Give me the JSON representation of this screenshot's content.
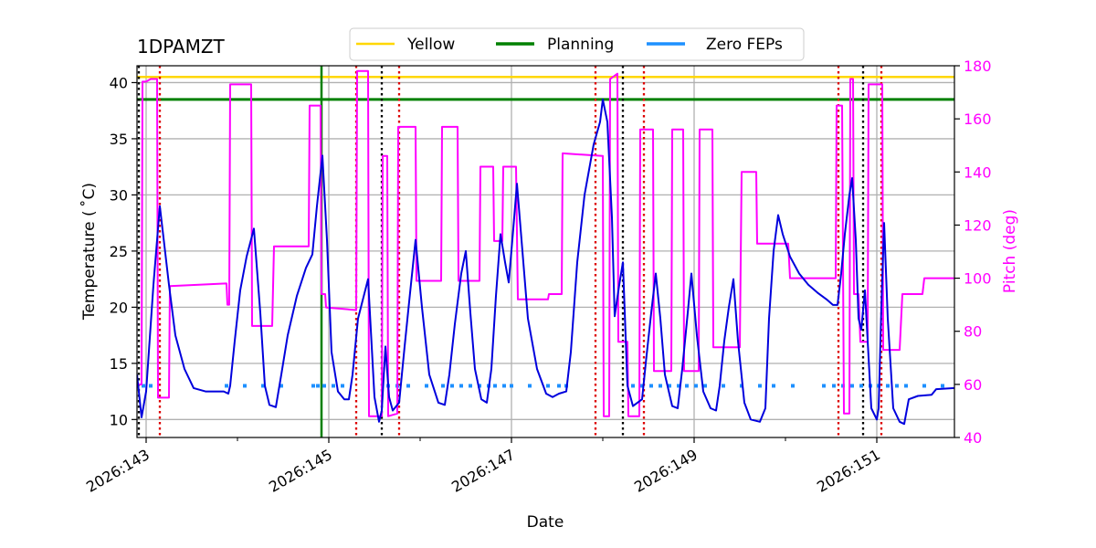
{
  "chart_data": {
    "type": "line",
    "title": "1DPAMZT",
    "xlabel": "Date",
    "ylabel": "Temperature ($^\\circ$C)",
    "ylabel_display": "Temperature ( ˚C)",
    "y2label": "Pitch (deg)",
    "xlim": [
      142.9,
      151.85
    ],
    "ylim": [
      8.4,
      41.5
    ],
    "y2lim": [
      40,
      180
    ],
    "grid": true,
    "legend_placement": "top-center",
    "x_ticks": [
      {
        "value": 143,
        "label": "2026:143"
      },
      {
        "value": 145,
        "label": "2026:145"
      },
      {
        "value": 147,
        "label": "2026:147"
      },
      {
        "value": 149,
        "label": "2026:149"
      },
      {
        "value": 151,
        "label": "2026:151"
      }
    ],
    "x_minor_ticks": [
      144,
      146,
      148,
      150
    ],
    "y_ticks": [
      {
        "value": 10,
        "label": "10"
      },
      {
        "value": 15,
        "label": "15"
      },
      {
        "value": 20,
        "label": "20"
      },
      {
        "value": 25,
        "label": "25"
      },
      {
        "value": 30,
        "label": "30"
      },
      {
        "value": 35,
        "label": "35"
      },
      {
        "value": 40,
        "label": "40"
      }
    ],
    "y2_ticks": [
      {
        "value": 40,
        "label": "40"
      },
      {
        "value": 60,
        "label": "60"
      },
      {
        "value": 80,
        "label": "80"
      },
      {
        "value": 100,
        "label": "100"
      },
      {
        "value": 120,
        "label": "120"
      },
      {
        "value": 140,
        "label": "140"
      },
      {
        "value": 160,
        "label": "160"
      },
      {
        "value": 180,
        "label": "180"
      }
    ],
    "legend": [
      {
        "name": "Yellow",
        "color": "#ffd700"
      },
      {
        "name": "Planning",
        "color": "#008000"
      },
      {
        "name": "Zero FEPs",
        "color": "#1e90ff"
      }
    ],
    "hlines": [
      {
        "name": "Yellow",
        "y": 40.5,
        "color": "#ffd700"
      },
      {
        "name": "Planning",
        "y": 38.5,
        "color": "#008000"
      }
    ],
    "vline_green": {
      "x": 144.92,
      "color": "#008000"
    },
    "vlines_black": [
      142.92,
      145.58,
      148.22,
      150.85
    ],
    "vlines_red": [
      143.15,
      145.3,
      145.77,
      147.92,
      148.45,
      150.58,
      151.05
    ],
    "temperature_series": {
      "name": "1DPAMZT",
      "color": "#0000dd",
      "points": [
        [
          142.9,
          14.0
        ],
        [
          142.95,
          10.2
        ],
        [
          143.0,
          12.5
        ],
        [
          143.08,
          22.0
        ],
        [
          143.15,
          29.0
        ],
        [
          143.25,
          22.0
        ],
        [
          143.32,
          17.5
        ],
        [
          143.42,
          14.5
        ],
        [
          143.52,
          12.8
        ],
        [
          143.65,
          12.5
        ],
        [
          143.85,
          12.5
        ],
        [
          143.9,
          12.3
        ],
        [
          143.92,
          13.0
        ],
        [
          143.97,
          17.0
        ],
        [
          144.03,
          21.5
        ],
        [
          144.1,
          24.5
        ],
        [
          144.18,
          27.0
        ],
        [
          144.25,
          19.5
        ],
        [
          144.3,
          13.0
        ],
        [
          144.35,
          11.3
        ],
        [
          144.42,
          11.1
        ],
        [
          144.48,
          14.0
        ],
        [
          144.55,
          17.5
        ],
        [
          144.65,
          21.0
        ],
        [
          144.75,
          23.5
        ],
        [
          144.82,
          24.7
        ],
        [
          144.87,
          29.0
        ],
        [
          144.93,
          33.5
        ],
        [
          144.98,
          26.0
        ],
        [
          145.03,
          16.0
        ],
        [
          145.1,
          12.5
        ],
        [
          145.17,
          11.8
        ],
        [
          145.22,
          11.8
        ],
        [
          145.26,
          14.0
        ],
        [
          145.32,
          19.0
        ],
        [
          145.43,
          22.5
        ],
        [
          145.5,
          12.0
        ],
        [
          145.55,
          9.8
        ],
        [
          145.58,
          10.8
        ],
        [
          145.62,
          16.5
        ],
        [
          145.66,
          12.0
        ],
        [
          145.7,
          10.8
        ],
        [
          145.77,
          11.5
        ],
        [
          145.83,
          16.5
        ],
        [
          145.88,
          20.5
        ],
        [
          145.95,
          26.0
        ],
        [
          146.02,
          20.0
        ],
        [
          146.1,
          14.0
        ],
        [
          146.2,
          11.5
        ],
        [
          146.27,
          11.3
        ],
        [
          146.32,
          14.0
        ],
        [
          146.38,
          18.5
        ],
        [
          146.45,
          23.0
        ],
        [
          146.5,
          25.0
        ],
        [
          146.55,
          19.5
        ],
        [
          146.6,
          14.5
        ],
        [
          146.67,
          11.8
        ],
        [
          146.73,
          11.5
        ],
        [
          146.78,
          14.5
        ],
        [
          146.83,
          21.0
        ],
        [
          146.88,
          26.5
        ],
        [
          146.93,
          24.0
        ],
        [
          146.97,
          22.2
        ],
        [
          147.02,
          27.0
        ],
        [
          147.06,
          31.0
        ],
        [
          147.12,
          25.0
        ],
        [
          147.18,
          19.0
        ],
        [
          147.28,
          14.5
        ],
        [
          147.38,
          12.3
        ],
        [
          147.45,
          12.0
        ],
        [
          147.52,
          12.3
        ],
        [
          147.6,
          12.5
        ],
        [
          147.65,
          16.0
        ],
        [
          147.72,
          24.0
        ],
        [
          147.8,
          30.0
        ],
        [
          147.9,
          34.5
        ],
        [
          147.97,
          36.5
        ],
        [
          148.0,
          38.5
        ],
        [
          148.05,
          36.5
        ],
        [
          148.1,
          28.0
        ],
        [
          148.13,
          19.2
        ],
        [
          148.18,
          22.0
        ],
        [
          148.22,
          24.0
        ],
        [
          148.27,
          13.0
        ],
        [
          148.33,
          11.2
        ],
        [
          148.43,
          11.8
        ],
        [
          148.47,
          15.0
        ],
        [
          148.53,
          19.5
        ],
        [
          148.58,
          23.0
        ],
        [
          148.63,
          19.0
        ],
        [
          148.68,
          14.0
        ],
        [
          148.76,
          11.2
        ],
        [
          148.82,
          11.0
        ],
        [
          148.87,
          14.5
        ],
        [
          148.93,
          19.5
        ],
        [
          148.97,
          23.0
        ],
        [
          149.03,
          17.5
        ],
        [
          149.1,
          12.5
        ],
        [
          149.18,
          11.0
        ],
        [
          149.24,
          10.8
        ],
        [
          149.28,
          13.0
        ],
        [
          149.33,
          17.0
        ],
        [
          149.38,
          20.0
        ],
        [
          149.43,
          22.5
        ],
        [
          149.48,
          17.0
        ],
        [
          149.55,
          11.5
        ],
        [
          149.62,
          10.0
        ],
        [
          149.72,
          9.8
        ],
        [
          149.78,
          11.0
        ],
        [
          149.82,
          19.0
        ],
        [
          149.87,
          25.0
        ],
        [
          149.92,
          28.2
        ],
        [
          149.97,
          26.5
        ],
        [
          150.05,
          24.5
        ],
        [
          150.15,
          23.0
        ],
        [
          150.25,
          22.0
        ],
        [
          150.35,
          21.3
        ],
        [
          150.45,
          20.7
        ],
        [
          150.52,
          20.2
        ],
        [
          150.57,
          20.2
        ],
        [
          150.61,
          23.0
        ],
        [
          150.65,
          26.5
        ],
        [
          150.7,
          30.0
        ],
        [
          150.73,
          31.5
        ],
        [
          150.77,
          26.0
        ],
        [
          150.8,
          19.0
        ],
        [
          150.83,
          18.0
        ],
        [
          150.87,
          21.5
        ],
        [
          150.9,
          17.0
        ],
        [
          150.94,
          11.0
        ],
        [
          151.0,
          10.0
        ],
        [
          151.02,
          11.0
        ],
        [
          151.05,
          20.0
        ],
        [
          151.08,
          27.5
        ],
        [
          151.12,
          19.0
        ],
        [
          151.18,
          11.0
        ],
        [
          151.25,
          9.8
        ],
        [
          151.3,
          9.6
        ],
        [
          151.35,
          11.8
        ],
        [
          151.45,
          12.1
        ],
        [
          151.6,
          12.2
        ],
        [
          151.65,
          12.7
        ],
        [
          151.85,
          12.8
        ]
      ]
    },
    "pitch_series": {
      "name": "Pitch",
      "color": "#ff00ff",
      "points": [
        [
          142.9,
          60
        ],
        [
          142.95,
          60
        ],
        [
          142.96,
          174
        ],
        [
          143.0,
          174
        ],
        [
          143.05,
          175
        ],
        [
          143.12,
          175
        ],
        [
          143.13,
          55
        ],
        [
          143.25,
          55
        ],
        [
          143.26,
          97
        ],
        [
          143.87,
          98
        ],
        [
          143.88,
          98
        ],
        [
          143.89,
          90
        ],
        [
          143.91,
          90
        ],
        [
          143.92,
          173
        ],
        [
          144.15,
          173
        ],
        [
          144.16,
          82
        ],
        [
          144.38,
          82
        ],
        [
          144.4,
          112
        ],
        [
          144.76,
          112
        ],
        [
          144.78,
          112
        ],
        [
          144.79,
          165
        ],
        [
          144.91,
          165
        ],
        [
          144.92,
          94
        ],
        [
          144.96,
          94
        ],
        [
          144.97,
          89
        ],
        [
          145.3,
          88
        ],
        [
          145.31,
          178
        ],
        [
          145.43,
          178
        ],
        [
          145.44,
          48
        ],
        [
          145.58,
          48
        ],
        [
          145.59,
          146
        ],
        [
          145.64,
          146
        ],
        [
          145.65,
          48
        ],
        [
          145.75,
          49
        ],
        [
          145.76,
          157
        ],
        [
          145.95,
          157
        ],
        [
          145.96,
          99
        ],
        [
          146.23,
          99
        ],
        [
          146.24,
          157
        ],
        [
          146.41,
          157
        ],
        [
          146.42,
          99
        ],
        [
          146.65,
          99
        ],
        [
          146.66,
          142
        ],
        [
          146.8,
          142
        ],
        [
          146.81,
          114
        ],
        [
          146.9,
          114
        ],
        [
          146.91,
          142
        ],
        [
          147.05,
          142
        ],
        [
          147.07,
          92
        ],
        [
          147.4,
          92
        ],
        [
          147.41,
          94
        ],
        [
          147.55,
          94
        ],
        [
          147.56,
          147
        ],
        [
          148.0,
          146
        ],
        [
          148.01,
          48
        ],
        [
          148.07,
          48
        ],
        [
          148.08,
          175
        ],
        [
          148.16,
          177
        ],
        [
          148.17,
          76
        ],
        [
          148.27,
          76
        ],
        [
          148.28,
          48
        ],
        [
          148.4,
          48
        ],
        [
          148.41,
          156
        ],
        [
          148.55,
          156
        ],
        [
          148.56,
          65
        ],
        [
          148.75,
          65
        ],
        [
          148.76,
          156
        ],
        [
          148.88,
          156
        ],
        [
          148.89,
          65
        ],
        [
          149.05,
          65
        ],
        [
          149.06,
          156
        ],
        [
          149.2,
          156
        ],
        [
          149.21,
          74
        ],
        [
          149.5,
          74
        ],
        [
          149.52,
          140
        ],
        [
          149.68,
          140
        ],
        [
          149.69,
          113
        ],
        [
          150.03,
          113
        ],
        [
          150.05,
          100
        ],
        [
          150.55,
          100
        ],
        [
          150.56,
          165
        ],
        [
          150.62,
          165
        ],
        [
          150.64,
          49
        ],
        [
          150.7,
          49
        ],
        [
          150.71,
          175
        ],
        [
          150.74,
          175
        ],
        [
          150.75,
          94
        ],
        [
          150.8,
          94
        ],
        [
          150.82,
          76
        ],
        [
          150.9,
          76
        ],
        [
          150.91,
          173
        ],
        [
          151.06,
          173
        ],
        [
          151.07,
          73
        ],
        [
          151.25,
          73
        ],
        [
          151.28,
          94
        ],
        [
          151.5,
          94
        ],
        [
          151.52,
          100
        ],
        [
          151.85,
          100
        ]
      ]
    },
    "zero_fep_series": {
      "name": "Zero FEPs",
      "color": "#1e90ff",
      "y": 13.0,
      "x": [
        142.97,
        143.05,
        143.88,
        144.08,
        144.28,
        144.48,
        144.83,
        144.88,
        144.95,
        145.05,
        145.15,
        145.65,
        145.75,
        145.87,
        146.07,
        146.25,
        146.35,
        146.45,
        146.55,
        146.65,
        146.75,
        146.82,
        146.92,
        147.0,
        147.2,
        147.4,
        147.52,
        147.6,
        148.33,
        148.43,
        148.53,
        148.63,
        148.73,
        148.83,
        148.92,
        149.02,
        149.12,
        149.32,
        149.52,
        149.72,
        149.87,
        150.08,
        150.42,
        150.53,
        150.63,
        150.73,
        150.83,
        150.93,
        151.02,
        151.12,
        151.22,
        151.32,
        151.52,
        151.72
      ]
    }
  }
}
